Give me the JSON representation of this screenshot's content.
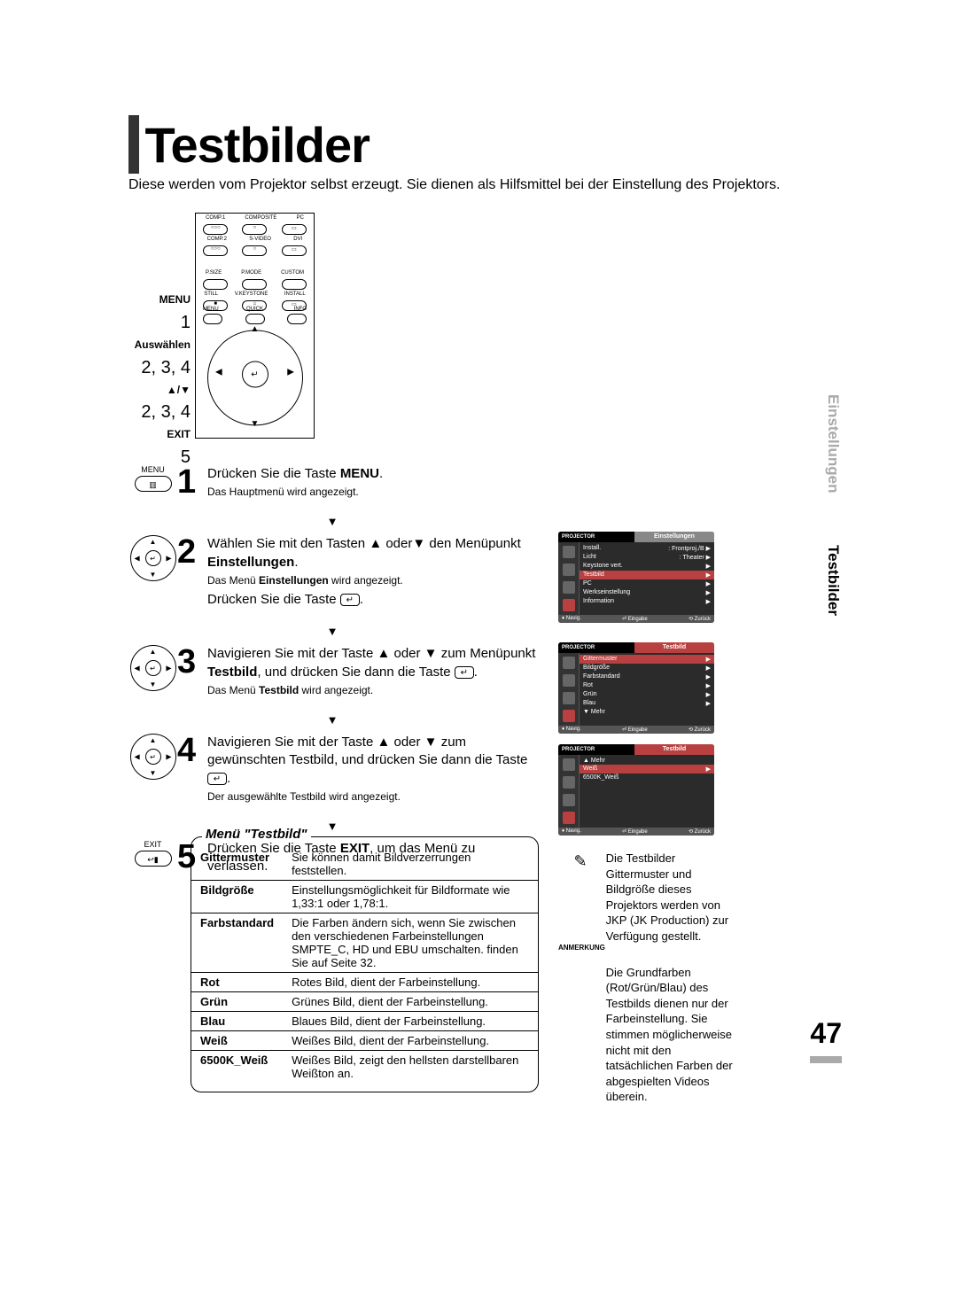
{
  "page": {
    "title": "Testbilder",
    "intro": "Diese werden vom Projektor selbst erzeugt. Sie dienen als Hilfsmittel bei der Einstellung des Projektors.",
    "page_number": "47"
  },
  "side_tabs": {
    "gray": "Einstellungen",
    "black": "Testbilder"
  },
  "remote_labels": {
    "menu": "MENU",
    "menu_num": "1",
    "select": "Auswählen",
    "select_num": "2, 3, 4",
    "arrows": "▲/▼",
    "arrows_num": "2, 3, 4",
    "exit": "EXIT",
    "exit_num": "5"
  },
  "remote_buttons": {
    "row1_labels": [
      "COMP.1",
      "COMPOSITE",
      "PC"
    ],
    "row2_labels": [
      "COMP.2",
      "S-VIDEO",
      "DVI"
    ],
    "row3_labels": [
      "P.SIZE",
      "P.MODE",
      "CUSTOM"
    ],
    "row4_labels": [
      "STILL",
      "V.KEYSTONE",
      "INSTALL"
    ],
    "pad_labels": {
      "left": "MENU",
      "mid": "QUICK",
      "right": "INFO",
      "right2": "EXIT"
    }
  },
  "steps": [
    {
      "icon_type": "menu",
      "icon_label": "MENU",
      "num": "1",
      "main_html": "Drücken Sie die Taste <b>MENU</b>.",
      "sub": "Das Hauptmenü wird angezeigt."
    },
    {
      "icon_type": "pad",
      "num": "2",
      "main_html": "Wählen Sie mit den Tasten ▲ oder▼ den Menüpunkt <b>Einstellungen</b>.",
      "sub": "Das Menü <b>Einstellungen</b> wird angezeigt.",
      "extra_html": "Drücken Sie die Taste <span class='enter-icon'>↵</span>."
    },
    {
      "icon_type": "pad",
      "num": "3",
      "main_html": "Navigieren Sie mit der Taste ▲ oder ▼ zum Menüpunkt <b>Testbild</b>, und drücken Sie dann die Taste <span class='enter-icon'>↵</span>.",
      "sub": "Das Menü <b>Testbild</b> wird angezeigt."
    },
    {
      "icon_type": "pad",
      "num": "4",
      "main_html": "Navigieren Sie mit der Taste ▲ oder ▼ zum gewünschten Testbild, und drücken Sie dann die Taste <span class='enter-icon'>↵</span>.",
      "sub": "Der ausgewählte Testbild wird angezeigt."
    },
    {
      "icon_type": "exit",
      "icon_label": "EXIT",
      "num": "5",
      "main_html": "Drücken Sie die Taste <b>EXIT</b>, um das Menü zu verlassen."
    }
  ],
  "menu_table": {
    "heading": "Menü \"Testbild\"",
    "rows": [
      {
        "k": "Gittermuster",
        "v": "Sie können damit Bildverzerrungen feststellen."
      },
      {
        "k": "Bildgröße",
        "v": "Einstellungsmöglichkeit für Bildformate wie 1,33:1 oder 1,78:1."
      },
      {
        "k": "Farbstandard",
        "v": "Die Farben ändern sich, wenn Sie zwischen den verschiedenen Farbeinstellungen SMPTE_C, HD und EBU umschalten. finden Sie auf Seite 32."
      },
      {
        "k": "Rot",
        "v": "Rotes Bild, dient der Farbeinstellung."
      },
      {
        "k": "Grün",
        "v": "Grünes Bild, dient der Farbeinstellung."
      },
      {
        "k": "Blau",
        "v": "Blaues Bild, dient der Farbeinstellung."
      },
      {
        "k": "Weiß",
        "v": "Weißes Bild, dient der Farbeinstellung."
      },
      {
        "k": "6500K_Weiß",
        "v": "Weißes Bild, zeigt den hellsten darstellbaren Weißton an."
      }
    ]
  },
  "osd": {
    "brand": "PROJECTOR",
    "foot": {
      "nav": "Navig.",
      "enter": "Eingabe",
      "back": "Zurück"
    },
    "menu1": {
      "section": "Einstellungen",
      "rows": [
        {
          "l": "Install.",
          "r": ": Frontproj./B ▶",
          "hl": false
        },
        {
          "l": "Licht",
          "r": ": Theater   ▶",
          "hl": false
        },
        {
          "l": "Keystone vert.",
          "r": "▶",
          "hl": false
        },
        {
          "l": "Testbild",
          "r": "▶",
          "hl": true
        },
        {
          "l": "PC",
          "r": "▶",
          "hl": false
        },
        {
          "l": "Werkseinstellung",
          "r": "▶",
          "hl": false
        },
        {
          "l": "Information",
          "r": "▶",
          "hl": false
        }
      ]
    },
    "menu2": {
      "section": "Testbild",
      "rows": [
        {
          "l": "Gittermuster",
          "r": "▶",
          "hl": true
        },
        {
          "l": "Bildgröße",
          "r": "▶",
          "hl": false
        },
        {
          "l": "Farbstandard",
          "r": "▶",
          "hl": false
        },
        {
          "l": "Rot",
          "r": "▶",
          "hl": false
        },
        {
          "l": "Grün",
          "r": "▶",
          "hl": false
        },
        {
          "l": "Blau",
          "r": "▶",
          "hl": false
        },
        {
          "l": "▼ Mehr",
          "r": "",
          "hl": false
        }
      ]
    },
    "menu3": {
      "section": "Testbild",
      "rows": [
        {
          "l": "▲ Mehr",
          "r": "",
          "hl": false
        },
        {
          "l": "Weiß",
          "r": "▶",
          "hl": true
        },
        {
          "l": "6500K_Weiß",
          "r": "",
          "hl": false
        }
      ]
    }
  },
  "note": {
    "label": "ANMERKUNG",
    "body1": "Die Testbilder Gittermuster und Bildgröße dieses Projektors werden von JKP (JK Production) zur Verfügung gestellt.",
    "body2": "Die Grundfarben (Rot/Grün/Blau) des Testbilds dienen nur der Farbeinstellung. Sie stimmen möglicherweise nicht mit den tatsächlichen Farben der abgespielten Videos überein."
  }
}
